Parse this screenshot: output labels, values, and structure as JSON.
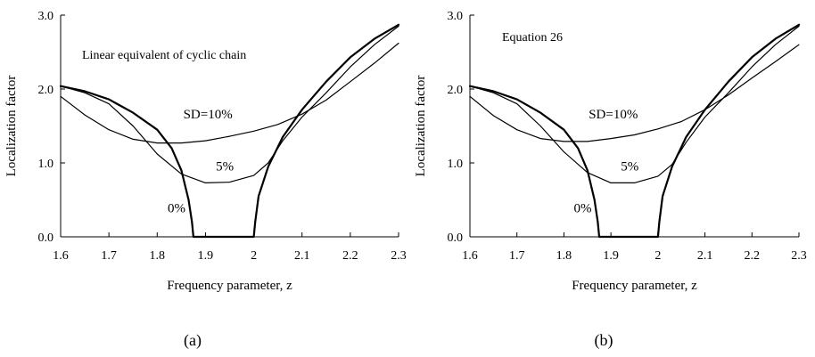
{
  "chart_data": [
    {
      "type": "line",
      "panel_label": "(a)",
      "annotation": "Linear equivalent of cyclic chain",
      "xlabel": "Frequency parameter, z",
      "ylabel": "Localization factor",
      "xlim": [
        1.6,
        2.3
      ],
      "ylim": [
        0.0,
        3.0
      ],
      "xticks": [
        "1.6",
        "1.7",
        "1.8",
        "1.9",
        "2",
        "2.1",
        "2.2",
        "2.3"
      ],
      "yticks": [
        "0.0",
        "1.0",
        "2.0",
        "3.0"
      ],
      "grid": false,
      "series": [
        {
          "name": "0%",
          "label_at": [
            1.84,
            0.33
          ],
          "stroke": "#000000",
          "width": 2.2,
          "points": [
            [
              1.6,
              2.04
            ],
            [
              1.65,
              1.97
            ],
            [
              1.7,
              1.86
            ],
            [
              1.75,
              1.68
            ],
            [
              1.8,
              1.45
            ],
            [
              1.83,
              1.2
            ],
            [
              1.85,
              0.9
            ],
            [
              1.865,
              0.5
            ],
            [
              1.872,
              0.2
            ],
            [
              1.875,
              0.0
            ],
            [
              2.0,
              0.0
            ],
            [
              2.003,
              0.2
            ],
            [
              2.01,
              0.55
            ],
            [
              2.03,
              0.95
            ],
            [
              2.06,
              1.35
            ],
            [
              2.1,
              1.72
            ],
            [
              2.15,
              2.1
            ],
            [
              2.2,
              2.43
            ],
            [
              2.25,
              2.68
            ],
            [
              2.3,
              2.87
            ]
          ]
        },
        {
          "name": "5%",
          "label_at": [
            1.94,
            0.9
          ],
          "stroke": "#000000",
          "width": 1.2,
          "points": [
            [
              1.6,
              2.04
            ],
            [
              1.65,
              1.95
            ],
            [
              1.7,
              1.8
            ],
            [
              1.75,
              1.5
            ],
            [
              1.8,
              1.12
            ],
            [
              1.85,
              0.85
            ],
            [
              1.9,
              0.73
            ],
            [
              1.95,
              0.74
            ],
            [
              2.0,
              0.83
            ],
            [
              2.03,
              1.0
            ],
            [
              2.06,
              1.3
            ],
            [
              2.1,
              1.62
            ],
            [
              2.15,
              1.95
            ],
            [
              2.2,
              2.3
            ],
            [
              2.25,
              2.6
            ],
            [
              2.3,
              2.85
            ]
          ]
        },
        {
          "name": "SD=10%",
          "label_at": [
            1.905,
            1.6
          ],
          "stroke": "#000000",
          "width": 1.2,
          "points": [
            [
              1.6,
              1.9
            ],
            [
              1.65,
              1.65
            ],
            [
              1.7,
              1.45
            ],
            [
              1.75,
              1.32
            ],
            [
              1.8,
              1.27
            ],
            [
              1.85,
              1.27
            ],
            [
              1.9,
              1.3
            ],
            [
              1.95,
              1.36
            ],
            [
              2.0,
              1.43
            ],
            [
              2.05,
              1.52
            ],
            [
              2.1,
              1.66
            ],
            [
              2.15,
              1.85
            ],
            [
              2.2,
              2.1
            ],
            [
              2.25,
              2.35
            ],
            [
              2.3,
              2.62
            ]
          ]
        }
      ]
    },
    {
      "type": "line",
      "panel_label": "(b)",
      "annotation": "Equation 26",
      "xlabel": "Frequency parameter, z",
      "ylabel": "Localization factor",
      "xlim": [
        1.6,
        2.3
      ],
      "ylim": [
        0.0,
        3.0
      ],
      "xticks": [
        "1.6",
        "1.7",
        "1.8",
        "1.9",
        "2",
        "2.1",
        "2.2",
        "2.3"
      ],
      "yticks": [
        "0.0",
        "1.0",
        "2.0",
        "3.0"
      ],
      "grid": false,
      "series": [
        {
          "name": "0%",
          "label_at": [
            1.84,
            0.33
          ],
          "stroke": "#000000",
          "width": 2.2,
          "points": [
            [
              1.6,
              2.04
            ],
            [
              1.65,
              1.97
            ],
            [
              1.7,
              1.86
            ],
            [
              1.75,
              1.68
            ],
            [
              1.8,
              1.45
            ],
            [
              1.83,
              1.2
            ],
            [
              1.85,
              0.9
            ],
            [
              1.865,
              0.5
            ],
            [
              1.872,
              0.2
            ],
            [
              1.875,
              0.0
            ],
            [
              2.0,
              0.0
            ],
            [
              2.003,
              0.2
            ],
            [
              2.01,
              0.55
            ],
            [
              2.03,
              0.95
            ],
            [
              2.06,
              1.35
            ],
            [
              2.1,
              1.72
            ],
            [
              2.15,
              2.1
            ],
            [
              2.2,
              2.43
            ],
            [
              2.25,
              2.68
            ],
            [
              2.3,
              2.87
            ]
          ]
        },
        {
          "name": "5%",
          "label_at": [
            1.94,
            0.9
          ],
          "stroke": "#000000",
          "width": 1.2,
          "points": [
            [
              1.6,
              2.04
            ],
            [
              1.65,
              1.95
            ],
            [
              1.7,
              1.8
            ],
            [
              1.75,
              1.5
            ],
            [
              1.8,
              1.15
            ],
            [
              1.85,
              0.87
            ],
            [
              1.9,
              0.73
            ],
            [
              1.95,
              0.73
            ],
            [
              2.0,
              0.82
            ],
            [
              2.03,
              0.98
            ],
            [
              2.06,
              1.28
            ],
            [
              2.1,
              1.62
            ],
            [
              2.15,
              1.95
            ],
            [
              2.2,
              2.3
            ],
            [
              2.25,
              2.6
            ],
            [
              2.3,
              2.85
            ]
          ]
        },
        {
          "name": "SD=10%",
          "label_at": [
            1.905,
            1.6
          ],
          "stroke": "#000000",
          "width": 1.2,
          "points": [
            [
              1.6,
              1.9
            ],
            [
              1.65,
              1.64
            ],
            [
              1.7,
              1.45
            ],
            [
              1.75,
              1.33
            ],
            [
              1.8,
              1.29
            ],
            [
              1.85,
              1.29
            ],
            [
              1.9,
              1.33
            ],
            [
              1.95,
              1.38
            ],
            [
              2.0,
              1.46
            ],
            [
              2.05,
              1.56
            ],
            [
              2.1,
              1.72
            ],
            [
              2.15,
              1.92
            ],
            [
              2.2,
              2.15
            ],
            [
              2.25,
              2.37
            ],
            [
              2.3,
              2.6
            ]
          ]
        }
      ]
    }
  ]
}
